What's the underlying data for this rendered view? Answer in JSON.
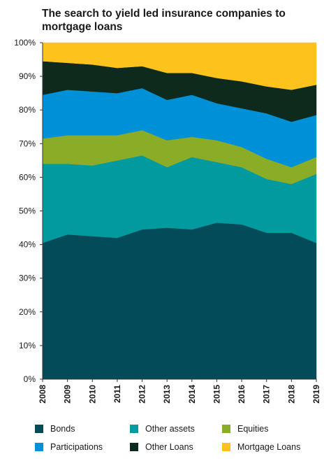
{
  "chart_data": {
    "type": "area",
    "stacked": true,
    "title": "The search to yield led insurance companies to mortgage loans",
    "x": [
      "2008",
      "2009",
      "2010",
      "2011",
      "2012",
      "2013",
      "2014",
      "2015",
      "2016",
      "2017",
      "2018",
      "2019"
    ],
    "ylim": [
      0,
      100
    ],
    "yticks": [
      "0%",
      "10%",
      "20%",
      "30%",
      "40%",
      "50%",
      "60%",
      "70%",
      "80%",
      "90%",
      "100%"
    ],
    "grid": false,
    "legend_position": "bottom",
    "series": [
      {
        "name": "Bonds",
        "color": "#044b5a",
        "values": [
          40.5,
          43.0,
          42.5,
          42.0,
          44.5,
          45.0,
          44.5,
          46.5,
          46.0,
          43.5,
          43.5,
          40.5
        ]
      },
      {
        "name": "Other assets",
        "color": "#009a9f",
        "values": [
          23.5,
          21.0,
          21.0,
          23.0,
          22.0,
          18.0,
          21.5,
          18.0,
          17.0,
          16.0,
          14.5,
          20.5
        ]
      },
      {
        "name": "Equities",
        "color": "#8aac27",
        "values": [
          7.5,
          8.5,
          9.0,
          7.5,
          7.5,
          8.0,
          6.0,
          6.5,
          6.0,
          6.0,
          5.0,
          5.0
        ]
      },
      {
        "name": "Participations",
        "color": "#0090d7",
        "values": [
          13.0,
          13.5,
          13.0,
          12.5,
          12.5,
          12.0,
          12.5,
          11.0,
          11.5,
          13.5,
          13.5,
          12.5
        ]
      },
      {
        "name": "Other Loans",
        "color": "#0d2a1c",
        "values": [
          10.0,
          8.0,
          8.0,
          7.5,
          6.5,
          8.0,
          6.5,
          7.5,
          8.0,
          8.0,
          9.5,
          9.0
        ]
      },
      {
        "name": "Mortgage Loans",
        "color": "#fdc31c",
        "values": [
          5.5,
          6.0,
          6.5,
          7.5,
          7.0,
          9.0,
          9.0,
          10.5,
          11.5,
          13.0,
          14.0,
          12.5
        ]
      }
    ]
  }
}
